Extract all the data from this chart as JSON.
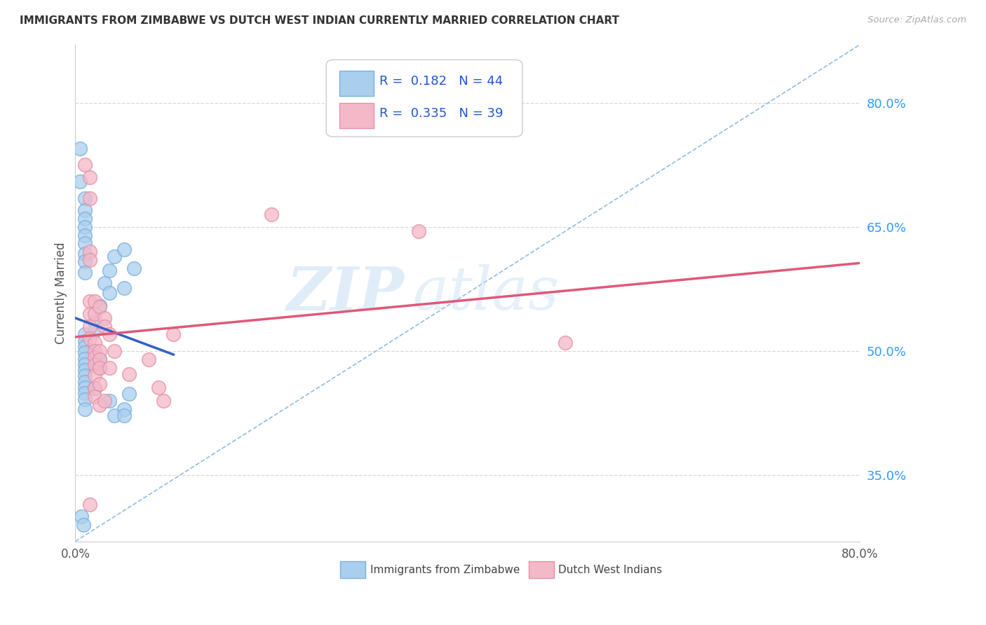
{
  "title": "IMMIGRANTS FROM ZIMBABWE VS DUTCH WEST INDIAN CURRENTLY MARRIED CORRELATION CHART",
  "source": "Source: ZipAtlas.com",
  "ylabel": "Currently Married",
  "ytick_labels": [
    "80.0%",
    "65.0%",
    "50.0%",
    "35.0%"
  ],
  "ytick_values": [
    0.8,
    0.65,
    0.5,
    0.35
  ],
  "xlim": [
    0.0,
    0.8
  ],
  "ylim": [
    0.27,
    0.87
  ],
  "R_blue": 0.182,
  "N_blue": 44,
  "R_pink": 0.335,
  "N_pink": 39,
  "legend_label_blue": "Immigrants from Zimbabwe",
  "legend_label_pink": "Dutch West Indians",
  "watermark_zip": "ZIP",
  "watermark_atlas": "atlas",
  "blue_scatter": [
    [
      0.005,
      0.745
    ],
    [
      0.005,
      0.705
    ],
    [
      0.01,
      0.685
    ],
    [
      0.01,
      0.67
    ],
    [
      0.01,
      0.66
    ],
    [
      0.01,
      0.65
    ],
    [
      0.01,
      0.64
    ],
    [
      0.01,
      0.63
    ],
    [
      0.01,
      0.618
    ],
    [
      0.01,
      0.608
    ],
    [
      0.01,
      0.595
    ],
    [
      0.01,
      0.52
    ],
    [
      0.01,
      0.512
    ],
    [
      0.01,
      0.505
    ],
    [
      0.01,
      0.498
    ],
    [
      0.01,
      0.491
    ],
    [
      0.01,
      0.484
    ],
    [
      0.01,
      0.477
    ],
    [
      0.01,
      0.47
    ],
    [
      0.01,
      0.463
    ],
    [
      0.01,
      0.456
    ],
    [
      0.01,
      0.449
    ],
    [
      0.01,
      0.442
    ],
    [
      0.01,
      0.43
    ],
    [
      0.02,
      0.535
    ],
    [
      0.02,
      0.525
    ],
    [
      0.02,
      0.455
    ],
    [
      0.025,
      0.555
    ],
    [
      0.025,
      0.49
    ],
    [
      0.025,
      0.48
    ],
    [
      0.03,
      0.582
    ],
    [
      0.035,
      0.597
    ],
    [
      0.035,
      0.57
    ],
    [
      0.035,
      0.44
    ],
    [
      0.04,
      0.614
    ],
    [
      0.05,
      0.623
    ],
    [
      0.05,
      0.576
    ],
    [
      0.05,
      0.43
    ],
    [
      0.055,
      0.448
    ],
    [
      0.06,
      0.6
    ],
    [
      0.006,
      0.3
    ],
    [
      0.008,
      0.29
    ],
    [
      0.04,
      0.422
    ],
    [
      0.05,
      0.422
    ]
  ],
  "pink_scatter": [
    [
      0.01,
      0.725
    ],
    [
      0.015,
      0.71
    ],
    [
      0.015,
      0.685
    ],
    [
      0.015,
      0.62
    ],
    [
      0.015,
      0.61
    ],
    [
      0.015,
      0.56
    ],
    [
      0.015,
      0.545
    ],
    [
      0.015,
      0.53
    ],
    [
      0.015,
      0.515
    ],
    [
      0.02,
      0.56
    ],
    [
      0.02,
      0.545
    ],
    [
      0.02,
      0.51
    ],
    [
      0.02,
      0.5
    ],
    [
      0.02,
      0.492
    ],
    [
      0.02,
      0.483
    ],
    [
      0.02,
      0.47
    ],
    [
      0.02,
      0.455
    ],
    [
      0.02,
      0.445
    ],
    [
      0.025,
      0.553
    ],
    [
      0.025,
      0.5
    ],
    [
      0.025,
      0.49
    ],
    [
      0.025,
      0.48
    ],
    [
      0.025,
      0.46
    ],
    [
      0.025,
      0.435
    ],
    [
      0.03,
      0.54
    ],
    [
      0.03,
      0.53
    ],
    [
      0.03,
      0.44
    ],
    [
      0.035,
      0.52
    ],
    [
      0.035,
      0.48
    ],
    [
      0.04,
      0.5
    ],
    [
      0.055,
      0.472
    ],
    [
      0.075,
      0.49
    ],
    [
      0.085,
      0.456
    ],
    [
      0.1,
      0.52
    ],
    [
      0.2,
      0.665
    ],
    [
      0.35,
      0.645
    ],
    [
      0.5,
      0.51
    ],
    [
      0.015,
      0.315
    ],
    [
      0.09,
      0.44
    ]
  ],
  "blue_color": "#aacfee",
  "blue_edge_color": "#7aafde",
  "pink_color": "#f4b8c8",
  "pink_edge_color": "#e490a8",
  "blue_line_color": "#3060c8",
  "pink_line_color": "#e05878",
  "dashed_line_color": "#90bce0",
  "background_color": "#ffffff",
  "grid_color": "#d8d8d8"
}
